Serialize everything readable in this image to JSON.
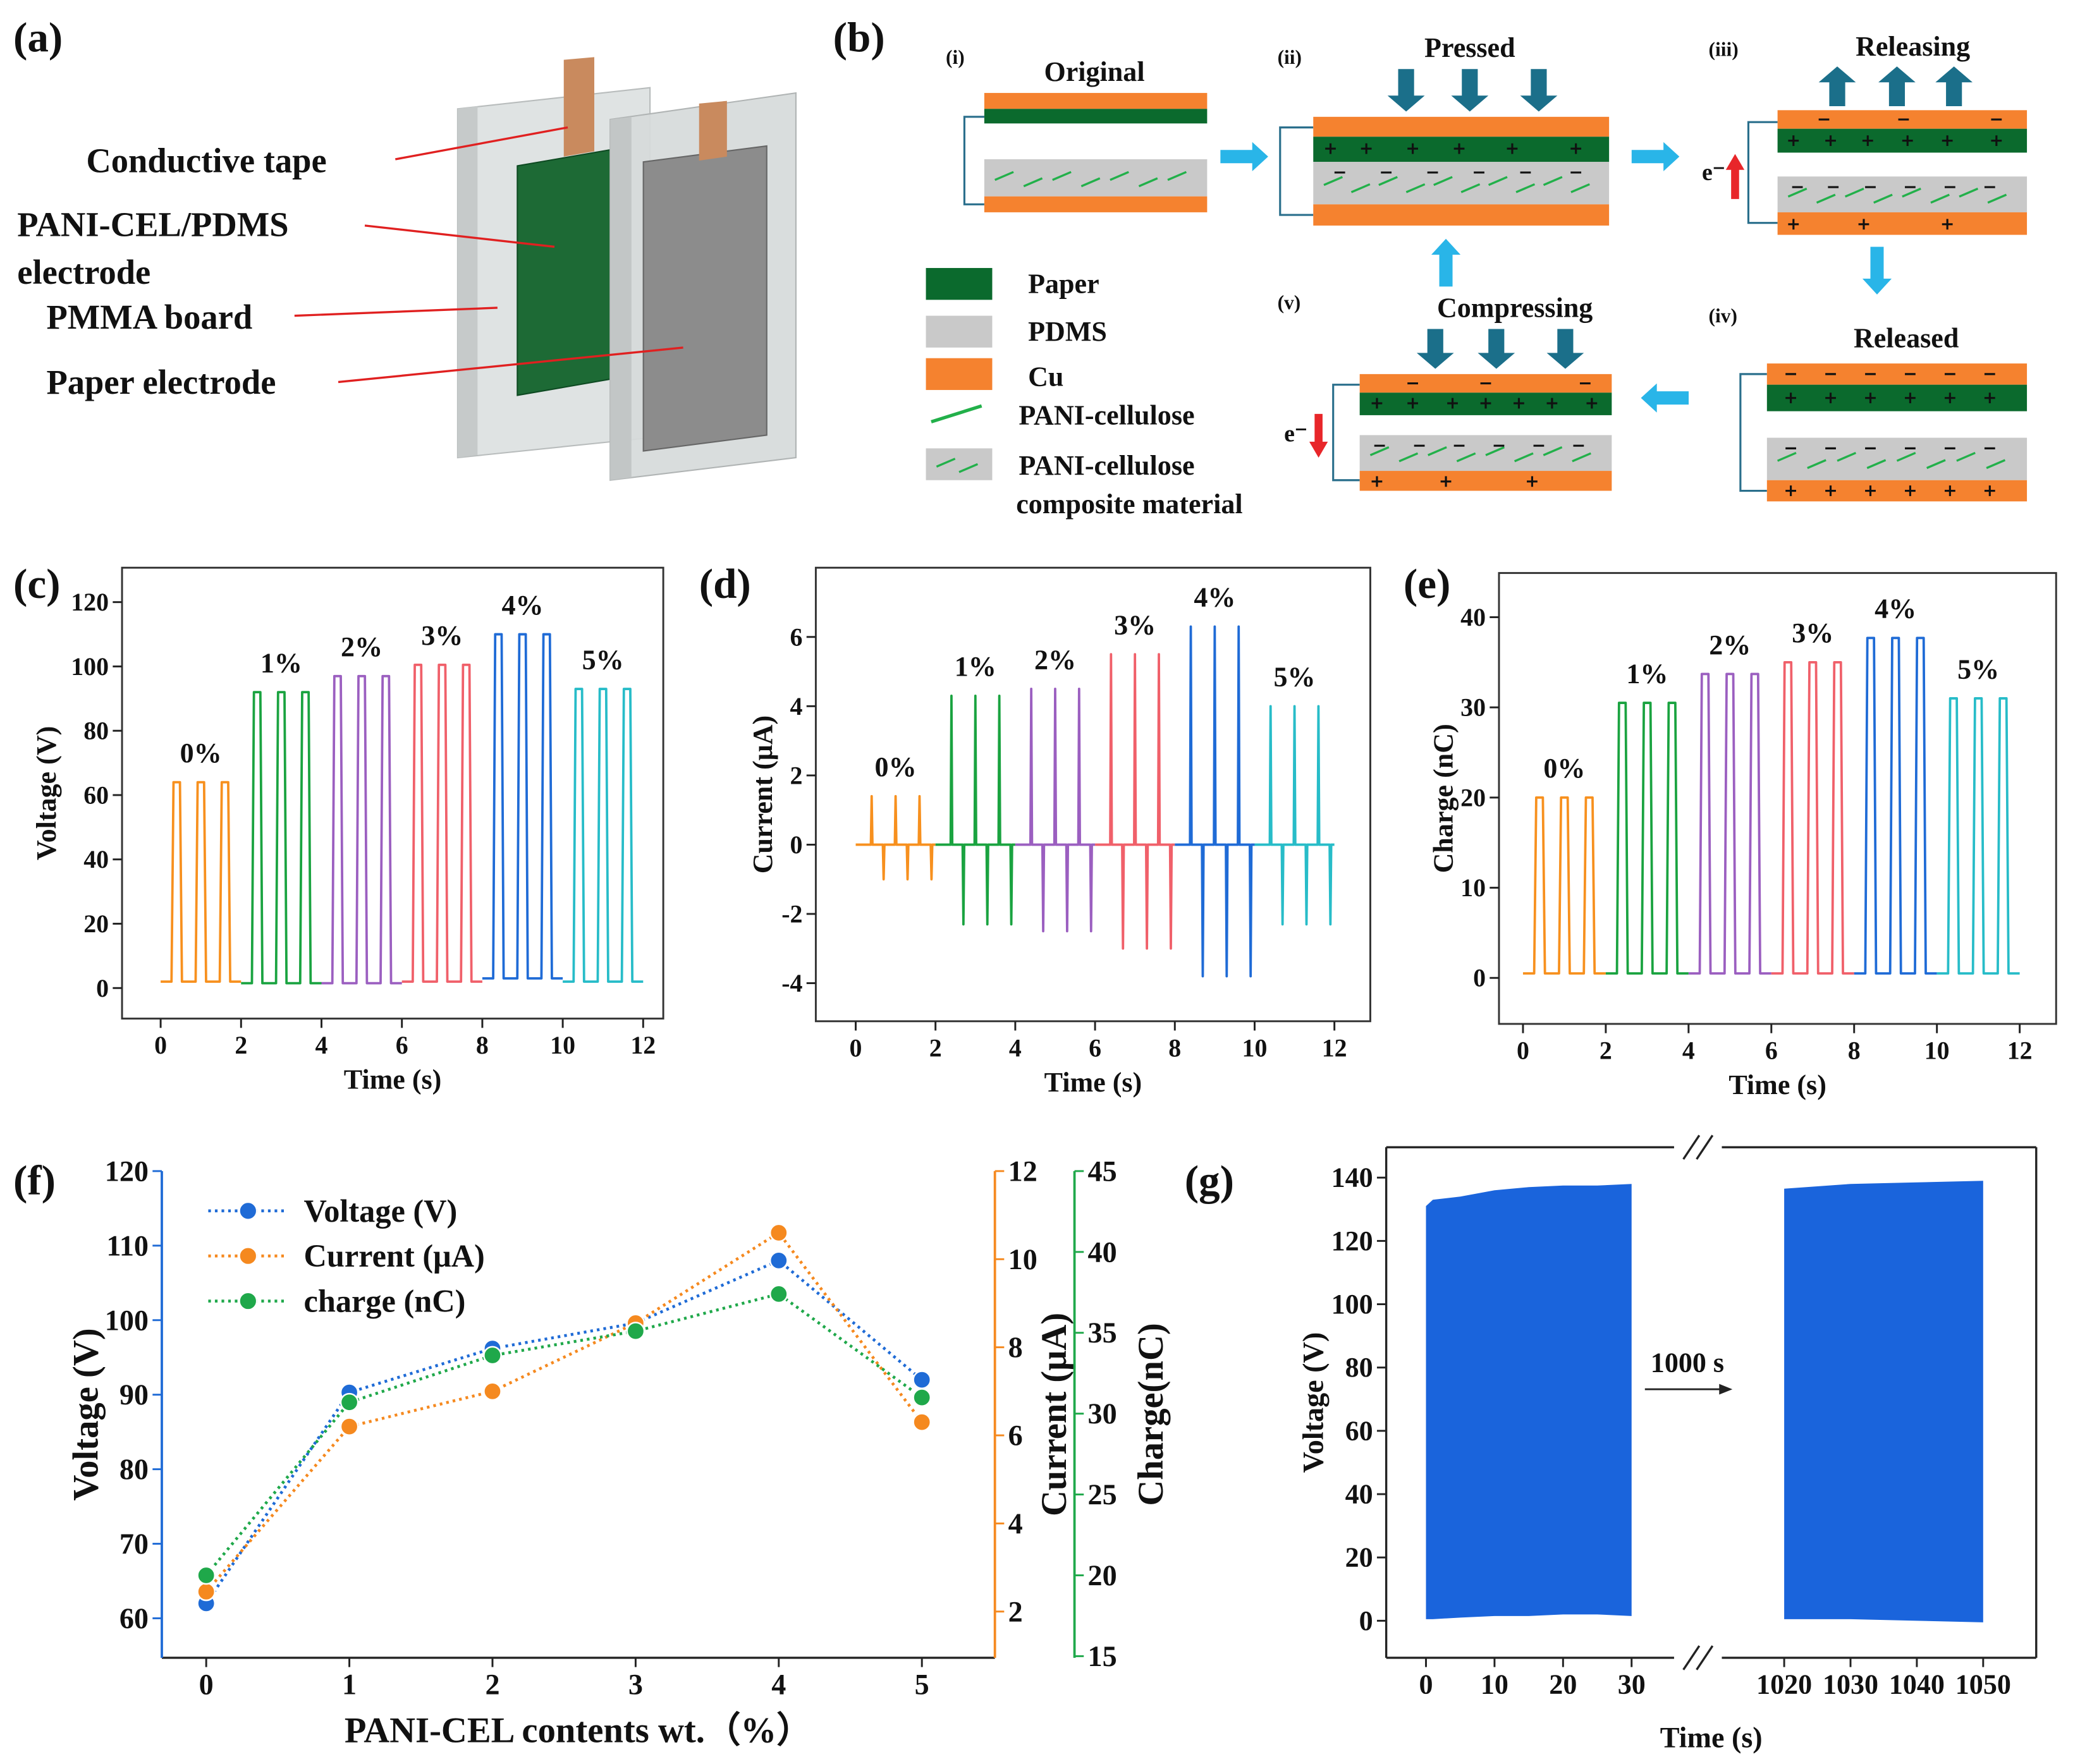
{
  "panel_labels": [
    "(a)",
    "(b)",
    "(c)",
    "(d)",
    "(e)",
    "(f)",
    "(g)"
  ],
  "diagram_a": {
    "labels": [
      "Conductive tape",
      "PANI-CEL/PDMS",
      "electrode",
      "PMMA board",
      "Paper electrode"
    ]
  },
  "diagram_b": {
    "steps": [
      {
        "numeral": "(i)",
        "label": "Original"
      },
      {
        "numeral": "(ii)",
        "label": "Pressed"
      },
      {
        "numeral": "(iii)",
        "label": "Releasing"
      },
      {
        "numeral": "(iv)",
        "label": "Released"
      },
      {
        "numeral": "(v)",
        "label": "Compressing"
      }
    ],
    "legend": [
      "Paper",
      "PDMS",
      "Cu",
      "PANI-cellulose",
      "PANI-cellulose",
      "composite material"
    ],
    "electron": "e⁻"
  },
  "chart_data": [
    {
      "type": "line",
      "xlabel": "Time (s)",
      "ylabel": "Voltage (V)",
      "xlim": [
        -0.96,
        12.5
      ],
      "xticks": [
        0,
        2,
        4,
        6,
        8,
        10,
        12
      ],
      "ylim": [
        -9.5,
        130.7
      ],
      "yticks": [
        0,
        20,
        40,
        60,
        80,
        100,
        120
      ],
      "frame": "box",
      "series_labels": true,
      "series": [
        {
          "name": "0%",
          "color": "#f7901e",
          "x": [
            0,
            0.27,
            0.32,
            0.48,
            0.53,
            0.87,
            0.92,
            1.08,
            1.13,
            1.47,
            1.52,
            1.68,
            1.73,
            2
          ],
          "values": [
            2,
            2,
            64,
            64,
            2,
            2,
            64,
            64,
            2,
            2,
            64,
            64,
            2,
            2
          ]
        },
        {
          "name": "1%",
          "color": "#1aa340",
          "x": [
            2,
            2.27,
            2.32,
            2.48,
            2.53,
            2.87,
            2.92,
            3.08,
            3.13,
            3.47,
            3.52,
            3.68,
            3.73,
            4
          ],
          "values": [
            1.5,
            1.5,
            92,
            92,
            1.5,
            1.5,
            92,
            92,
            1.5,
            1.5,
            92,
            92,
            1.5,
            1.5
          ]
        },
        {
          "name": "2%",
          "color": "#9b5fc0",
          "x": [
            4,
            4.27,
            4.32,
            4.48,
            4.53,
            4.87,
            4.92,
            5.08,
            5.13,
            5.47,
            5.52,
            5.68,
            5.73,
            6
          ],
          "values": [
            1.5,
            1.5,
            97,
            97,
            1.5,
            1.5,
            97,
            97,
            1.5,
            1.5,
            97,
            97,
            1.5,
            1.5
          ]
        },
        {
          "name": "3%",
          "color": "#f0606a",
          "x": [
            6,
            6.27,
            6.32,
            6.48,
            6.53,
            6.87,
            6.92,
            7.08,
            7.13,
            7.47,
            7.52,
            7.68,
            7.73,
            8
          ],
          "values": [
            2,
            2,
            100.5,
            100.5,
            2,
            2,
            100.5,
            100.5,
            2,
            2,
            100.5,
            100.5,
            2,
            2
          ]
        },
        {
          "name": "4%",
          "color": "#1f6bd6",
          "x": [
            8,
            8.27,
            8.32,
            8.48,
            8.53,
            8.87,
            8.92,
            9.08,
            9.13,
            9.47,
            9.52,
            9.68,
            9.73,
            10
          ],
          "values": [
            3,
            3,
            110,
            110,
            3,
            3,
            110,
            110,
            3,
            3,
            110,
            110,
            3,
            3
          ]
        },
        {
          "name": "5%",
          "color": "#27bcc8",
          "x": [
            10,
            10.27,
            10.32,
            10.48,
            10.53,
            10.87,
            10.92,
            11.08,
            11.13,
            11.47,
            11.52,
            11.68,
            11.73,
            12
          ],
          "values": [
            2,
            2,
            93,
            93,
            2,
            2,
            93,
            93,
            2,
            2,
            93,
            93,
            2,
            2
          ]
        }
      ]
    },
    {
      "type": "line",
      "xlabel": "Time (s)",
      "ylabel": "Current (μA)",
      "xlim": [
        -1,
        12.9
      ],
      "xticks": [
        0,
        2,
        4,
        6,
        8,
        10,
        12
      ],
      "ylim": [
        -5.1,
        8
      ],
      "yticks": [
        -4,
        -2,
        0,
        2,
        4,
        6
      ],
      "frame": "box",
      "series_labels": true,
      "series": [
        {
          "name": "0%",
          "color": "#f7901e",
          "x": [
            0,
            0.38,
            0.4,
            0.42,
            0.68,
            0.7,
            0.72,
            0.98,
            1,
            1.02,
            1.28,
            1.3,
            1.32,
            1.58,
            1.6,
            1.62,
            1.88,
            1.9,
            1.92,
            2
          ],
          "values": [
            0,
            0,
            1.4,
            0,
            0,
            -1,
            0,
            0,
            1.4,
            0,
            0,
            -1,
            0,
            0,
            1.4,
            0,
            0,
            -1,
            0,
            0
          ]
        },
        {
          "name": "1%",
          "color": "#1aa340",
          "x": [
            2,
            2.38,
            2.4,
            2.42,
            2.68,
            2.7,
            2.72,
            2.98,
            3,
            3.02,
            3.28,
            3.3,
            3.32,
            3.58,
            3.6,
            3.62,
            3.88,
            3.9,
            3.92,
            4
          ],
          "values": [
            0,
            0,
            4.3,
            0,
            0,
            -2.3,
            0,
            0,
            4.3,
            0,
            0,
            -2.3,
            0,
            0,
            4.3,
            0,
            0,
            -2.3,
            0,
            0
          ]
        },
        {
          "name": "2%",
          "color": "#9b5fc0",
          "x": [
            4,
            4.38,
            4.4,
            4.42,
            4.68,
            4.7,
            4.72,
            4.98,
            5,
            5.02,
            5.28,
            5.3,
            5.32,
            5.58,
            5.6,
            5.62,
            5.88,
            5.9,
            5.92,
            6
          ],
          "values": [
            0,
            0,
            4.5,
            0,
            0,
            -2.5,
            0,
            0,
            4.5,
            0,
            0,
            -2.5,
            0,
            0,
            4.5,
            0,
            0,
            -2.5,
            0,
            0
          ]
        },
        {
          "name": "3%",
          "color": "#f0606a",
          "x": [
            6,
            6.38,
            6.4,
            6.42,
            6.68,
            6.7,
            6.72,
            6.98,
            7,
            7.02,
            7.28,
            7.3,
            7.32,
            7.58,
            7.6,
            7.62,
            7.88,
            7.9,
            7.92,
            8
          ],
          "values": [
            0,
            0,
            5.5,
            0,
            0,
            -3,
            0,
            0,
            5.5,
            0,
            0,
            -3,
            0,
            0,
            5.5,
            0,
            0,
            -3,
            0,
            0
          ]
        },
        {
          "name": "4%",
          "color": "#1f6bd6",
          "x": [
            8,
            8.38,
            8.4,
            8.42,
            8.68,
            8.7,
            8.72,
            8.98,
            9,
            9.02,
            9.28,
            9.3,
            9.32,
            9.58,
            9.6,
            9.62,
            9.88,
            9.9,
            9.92,
            10
          ],
          "values": [
            0,
            0,
            6.3,
            0,
            0,
            -3.8,
            0,
            0,
            6.3,
            0,
            0,
            -3.8,
            0,
            0,
            6.3,
            0,
            0,
            -3.8,
            0,
            0
          ]
        },
        {
          "name": "5%",
          "color": "#27bcc8",
          "x": [
            10,
            10.38,
            10.4,
            10.42,
            10.68,
            10.7,
            10.72,
            10.98,
            11,
            11.02,
            11.28,
            11.3,
            11.32,
            11.58,
            11.6,
            11.62,
            11.88,
            11.9,
            11.92,
            12
          ],
          "values": [
            0,
            0,
            4,
            0,
            0,
            -2.3,
            0,
            0,
            4,
            0,
            0,
            -2.3,
            0,
            0,
            4,
            0,
            0,
            -2.3,
            0,
            0
          ]
        }
      ]
    },
    {
      "type": "line",
      "xlabel": "Time (s)",
      "ylabel": "Charge (nC)",
      "xlim": [
        -0.58,
        12.88
      ],
      "xticks": [
        0,
        2,
        4,
        6,
        8,
        10,
        12
      ],
      "ylim": [
        -5.1,
        44.9
      ],
      "yticks": [
        0,
        10,
        20,
        30,
        40
      ],
      "frame": "box",
      "series_labels": true,
      "series": [
        {
          "name": "0%",
          "color": "#f7901e",
          "x": [
            0,
            0.27,
            0.32,
            0.48,
            0.53,
            0.87,
            0.92,
            1.08,
            1.13,
            1.47,
            1.52,
            1.68,
            1.73,
            2
          ],
          "values": [
            0.5,
            0.5,
            20,
            20,
            0.5,
            0.5,
            20,
            20,
            0.5,
            0.5,
            20,
            20,
            0.5,
            0.5
          ]
        },
        {
          "name": "1%",
          "color": "#1aa340",
          "x": [
            2,
            2.27,
            2.32,
            2.48,
            2.53,
            2.87,
            2.92,
            3.08,
            3.13,
            3.47,
            3.52,
            3.68,
            3.73,
            4
          ],
          "values": [
            0.5,
            0.5,
            30.5,
            30.5,
            0.5,
            0.5,
            30.5,
            30.5,
            0.5,
            0.5,
            30.5,
            30.5,
            0.5,
            0.5
          ]
        },
        {
          "name": "2%",
          "color": "#9b5fc0",
          "x": [
            4,
            4.27,
            4.32,
            4.48,
            4.53,
            4.87,
            4.92,
            5.08,
            5.13,
            5.47,
            5.52,
            5.68,
            5.73,
            6
          ],
          "values": [
            0.5,
            0.5,
            33.7,
            33.7,
            0.5,
            0.5,
            33.7,
            33.7,
            0.5,
            0.5,
            33.7,
            33.7,
            0.5,
            0.5
          ]
        },
        {
          "name": "3%",
          "color": "#f0606a",
          "x": [
            6,
            6.27,
            6.32,
            6.48,
            6.53,
            6.87,
            6.92,
            7.08,
            7.13,
            7.47,
            7.52,
            7.68,
            7.73,
            8
          ],
          "values": [
            0.5,
            0.5,
            35,
            35,
            0.5,
            0.5,
            35,
            35,
            0.5,
            0.5,
            35,
            35,
            0.5,
            0.5
          ]
        },
        {
          "name": "4%",
          "color": "#1f6bd6",
          "x": [
            8,
            8.27,
            8.32,
            8.48,
            8.53,
            8.87,
            8.92,
            9.08,
            9.13,
            9.47,
            9.52,
            9.68,
            9.73,
            10
          ],
          "values": [
            0.5,
            0.5,
            37.7,
            37.7,
            0.5,
            0.5,
            37.7,
            37.7,
            0.5,
            0.5,
            37.7,
            37.7,
            0.5,
            0.5
          ]
        },
        {
          "name": "5%",
          "color": "#27bcc8",
          "x": [
            10,
            10.27,
            10.32,
            10.48,
            10.53,
            10.87,
            10.92,
            11.08,
            11.13,
            11.47,
            11.52,
            11.68,
            11.73,
            12
          ],
          "values": [
            0.5,
            0.5,
            31,
            31,
            0.5,
            0.5,
            31,
            31,
            0.5,
            0.5,
            31,
            31,
            0.5,
            0.5
          ]
        }
      ]
    },
    {
      "type": "line",
      "xlabel": "PANI-CEL contents wt.（%）",
      "ylabel": "Voltage (V)",
      "y2label": "Current (μA)",
      "y3label": "Charge(nC)",
      "x": [
        0,
        1,
        2,
        3,
        4,
        5
      ],
      "xlim": [
        -0.31,
        5.51
      ],
      "xticks": [
        0,
        1,
        2,
        3,
        4,
        5
      ],
      "ylim": [
        54.7,
        120
      ],
      "yticks": [
        60,
        70,
        80,
        90,
        100,
        110,
        120
      ],
      "y2lim": [
        0.95,
        12
      ],
      "y2ticks": [
        2,
        4,
        6,
        8,
        10,
        12
      ],
      "y3lim": [
        14.9,
        45
      ],
      "y3ticks": [
        15,
        20,
        25,
        30,
        35,
        40,
        45
      ],
      "frame": "open",
      "markers": true,
      "line_style": "dotted",
      "color_axes": true,
      "legend": "upper left",
      "series": [
        {
          "name": "Voltage (V)",
          "color": "#1f6bd6",
          "axis": "y",
          "values": [
            62,
            90.3,
            96.2,
            99.6,
            108,
            92
          ]
        },
        {
          "name": "Current (μA)",
          "color": "#f5891f",
          "axis": "y2",
          "values": [
            2.45,
            6.2,
            7,
            8.55,
            10.6,
            6.3
          ]
        },
        {
          "name": "charge (nC)",
          "color": "#1fa84a",
          "axis": "y3",
          "values": [
            20,
            30.7,
            33.6,
            35.1,
            37.4,
            31
          ]
        }
      ]
    },
    {
      "type": "area",
      "xlabel": "Time (s)",
      "ylabel": "Voltage (V)",
      "ylim": [
        -11.7,
        149.6
      ],
      "yticks": [
        0,
        20,
        40,
        60,
        80,
        100,
        120,
        140
      ],
      "color": "#1a64dc",
      "annotation": "1000 s",
      "segments": [
        {
          "xlim": [
            -5.8,
            36.2
          ],
          "xticks": [
            0,
            10,
            20,
            30
          ],
          "x": [
            0,
            1,
            5,
            10,
            15,
            20,
            25,
            30
          ],
          "upper": [
            131,
            133,
            134,
            136,
            137,
            137.5,
            137.5,
            138
          ],
          "lower": [
            0.5,
            0.5,
            1,
            1.5,
            1.5,
            2,
            2,
            1.5
          ]
        },
        {
          "xlim": [
            1010.6,
            1058
          ],
          "xticks": [
            1020,
            1030,
            1040,
            1050
          ],
          "x": [
            1020,
            1030,
            1040,
            1050
          ],
          "upper": [
            136.5,
            138,
            138.5,
            139
          ],
          "lower": [
            0.5,
            0.5,
            0,
            -0.5
          ]
        }
      ]
    }
  ]
}
